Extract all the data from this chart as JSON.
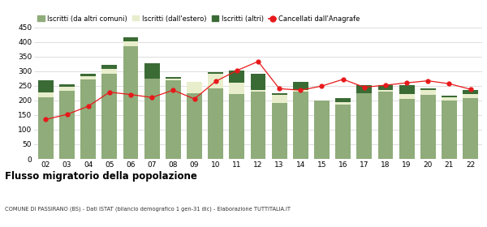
{
  "years": [
    "02",
    "03",
    "04",
    "05",
    "06",
    "07",
    "08",
    "09",
    "10",
    "11",
    "12",
    "13",
    "14",
    "15",
    "16",
    "17",
    "18",
    "19",
    "20",
    "21",
    "22"
  ],
  "iscritti_comuni": [
    210,
    232,
    272,
    290,
    385,
    275,
    270,
    225,
    240,
    222,
    230,
    192,
    230,
    200,
    185,
    225,
    230,
    205,
    220,
    200,
    207
  ],
  "iscritti_estero": [
    18,
    15,
    10,
    18,
    18,
    0,
    5,
    38,
    52,
    38,
    5,
    28,
    5,
    0,
    10,
    0,
    5,
    18,
    15,
    10,
    15
  ],
  "iscritti_altri": [
    42,
    8,
    8,
    14,
    14,
    52,
    4,
    0,
    5,
    42,
    55,
    5,
    28,
    0,
    14,
    28,
    18,
    28,
    5,
    5,
    14
  ],
  "cancellati": [
    135,
    152,
    180,
    228,
    220,
    210,
    235,
    205,
    265,
    302,
    333,
    240,
    235,
    249,
    272,
    245,
    252,
    260,
    267,
    257,
    238
  ],
  "color_comuni": "#8fac7a",
  "color_estero": "#e8eecc",
  "color_altri": "#3a6b35",
  "color_cancellati": "#e8191b",
  "ylim": [
    0,
    450
  ],
  "yticks": [
    0,
    50,
    100,
    150,
    200,
    250,
    300,
    350,
    400,
    450
  ],
  "legend_labels": [
    "Iscritti (da altri comuni)",
    "Iscritti (dall'estero)",
    "Iscritti (altri)",
    "Cancellati dall'Anagrafe"
  ],
  "title": "Flusso migratorio della popolazione",
  "subtitle": "COMUNE DI PASSIRANO (BS) - Dati ISTAT (bilancio demografico 1 gen-31 dic) - Elaborazione TUTTITALIA.IT",
  "bg_color": "#ffffff",
  "grid_color": "#d0d0d0"
}
